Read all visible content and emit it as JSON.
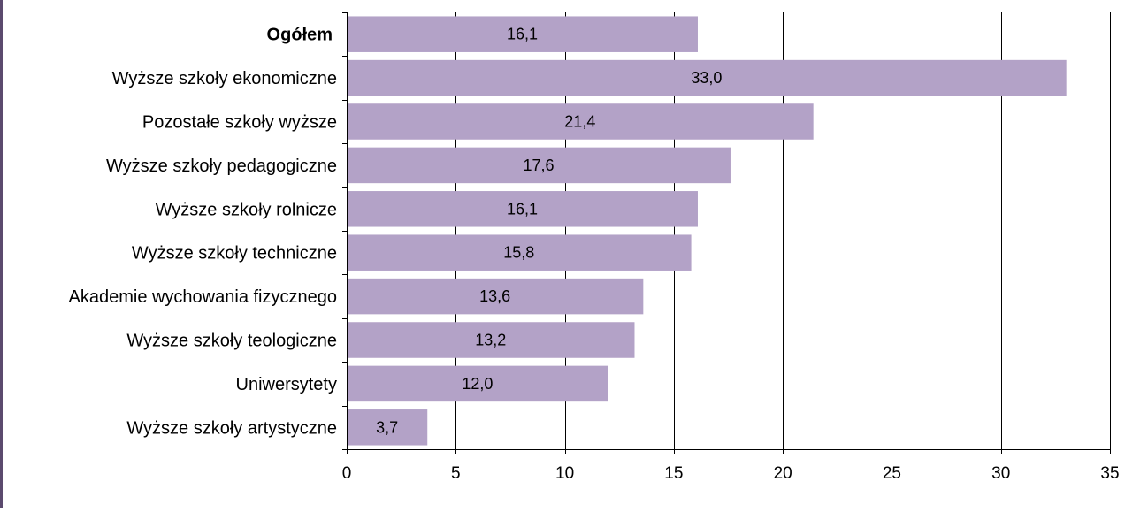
{
  "chart_data": {
    "type": "bar",
    "orientation": "horizontal",
    "categories": [
      "Ogółem",
      "Wyższe szkoły ekonomiczne",
      "Pozostałe szkoły wyższe",
      "Wyższe szkoły pedagogiczne",
      "Wyższe szkoły rolnicze",
      "Wyższe szkoły techniczne",
      "Akademie wychowania fizycznego",
      "Wyższe szkoły teologiczne",
      "Uniwersytety",
      "Wyższe szkoły artystyczne"
    ],
    "bold_categories": [
      "Ogółem"
    ],
    "values": [
      16.1,
      33.0,
      21.4,
      17.6,
      16.1,
      15.8,
      13.6,
      13.2,
      12.0,
      3.7
    ],
    "value_labels": [
      "16,1",
      "33,0",
      "21,4",
      "17,6",
      "16,1",
      "15,8",
      "13,6",
      "13,2",
      "12,0",
      "3,7"
    ],
    "xlim": [
      0,
      35
    ],
    "x_ticks": [
      0,
      5,
      10,
      15,
      20,
      25,
      30,
      35
    ],
    "x_tick_labels": [
      "0",
      "5",
      "10",
      "15",
      "20",
      "25",
      "30",
      "35"
    ],
    "title": "",
    "xlabel": "",
    "ylabel": "",
    "grid": "vertical",
    "legend": "none",
    "bar_color": "#b3a2c7",
    "grid_color": "#000000",
    "frame_accent_color": "#5b4a6e"
  }
}
